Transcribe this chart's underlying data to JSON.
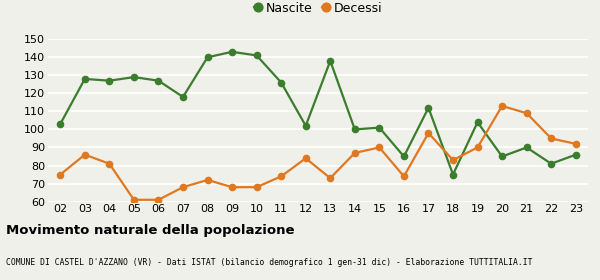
{
  "years": [
    "02",
    "03",
    "04",
    "05",
    "06",
    "07",
    "08",
    "09",
    "10",
    "11",
    "12",
    "13",
    "14",
    "15",
    "16",
    "17",
    "18",
    "19",
    "20",
    "21",
    "22",
    "23"
  ],
  "nascite": [
    103,
    128,
    127,
    129,
    127,
    118,
    140,
    143,
    141,
    126,
    102,
    138,
    100,
    101,
    85,
    112,
    75,
    104,
    85,
    90,
    81,
    86
  ],
  "decessi": [
    75,
    86,
    81,
    61,
    61,
    68,
    72,
    68,
    68,
    74,
    84,
    73,
    87,
    90,
    74,
    98,
    83,
    90,
    113,
    109,
    95,
    92
  ],
  "nascite_color": "#3a7d2c",
  "decessi_color": "#e07820",
  "background_color": "#f0f0eb",
  "grid_color": "#ffffff",
  "ylim": [
    60,
    150
  ],
  "yticks": [
    60,
    70,
    80,
    90,
    100,
    110,
    120,
    130,
    140,
    150
  ],
  "title": "Movimento naturale della popolazione",
  "subtitle": "COMUNE DI CASTEL D'AZZANO (VR) - Dati ISTAT (bilancio demografico 1 gen-31 dic) - Elaborazione TUTTITALIA.IT",
  "legend_nascite": "Nascite",
  "legend_decessi": "Decessi",
  "marker_size": 4.5,
  "line_width": 1.6
}
